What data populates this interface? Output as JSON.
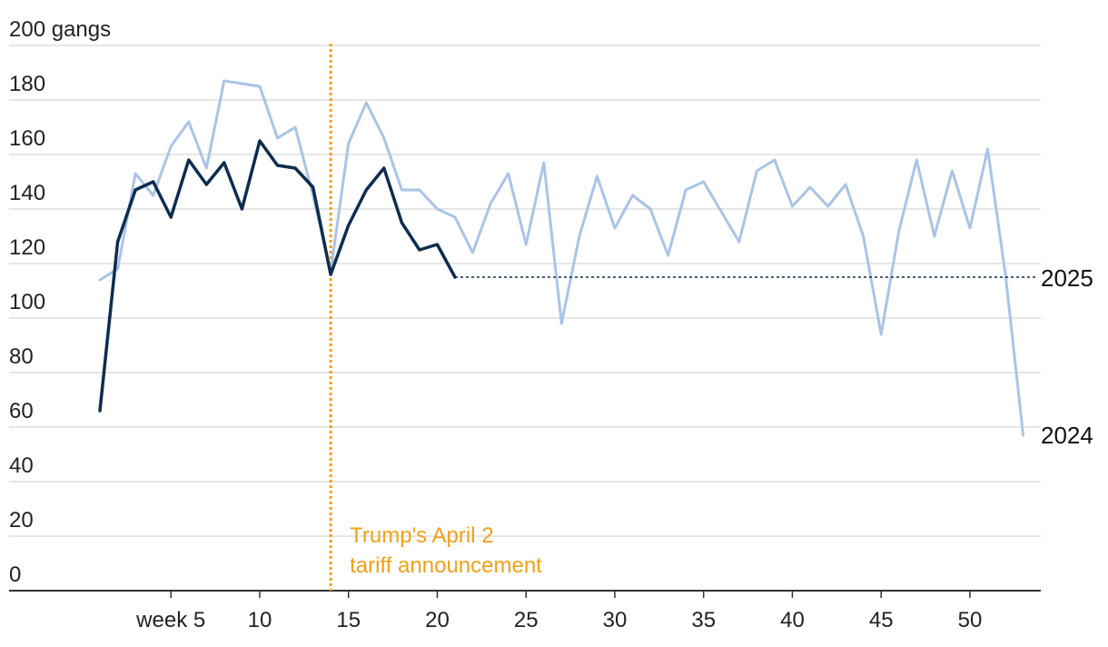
{
  "chart_data": {
    "type": "line",
    "ylabel": "gangs",
    "ylim": [
      0,
      200
    ],
    "xlim": [
      1,
      53
    ],
    "grid": true,
    "y_ticks": [
      0,
      20,
      40,
      60,
      80,
      100,
      120,
      140,
      160,
      180,
      200
    ],
    "y_tick_labels": [
      "0",
      "20",
      "40",
      "60",
      "80",
      "100",
      "120",
      "140",
      "160",
      "180",
      "200 gangs"
    ],
    "x_ticks": [
      5,
      10,
      15,
      20,
      25,
      30,
      35,
      40,
      45,
      50
    ],
    "x_tick_labels": [
      "week 5",
      "10",
      "15",
      "20",
      "25",
      "30",
      "35",
      "40",
      "45",
      "50"
    ],
    "series": [
      {
        "name": "2024",
        "color": "#a9c4e6",
        "x": [
          1,
          2,
          3,
          4,
          5,
          6,
          7,
          8,
          9,
          10,
          11,
          12,
          13,
          14,
          15,
          16,
          17,
          18,
          19,
          20,
          21,
          22,
          23,
          24,
          25,
          26,
          27,
          28,
          29,
          30,
          31,
          32,
          33,
          34,
          35,
          36,
          37,
          38,
          39,
          40,
          41,
          42,
          43,
          44,
          45,
          46,
          47,
          48,
          49,
          50,
          51,
          52,
          53
        ],
        "values": [
          114,
          118,
          153,
          145,
          163,
          172,
          155,
          187,
          186,
          185,
          166,
          170,
          145,
          117,
          164,
          179,
          166,
          147,
          147,
          140,
          137,
          124,
          142,
          153,
          127,
          157,
          98,
          130,
          152,
          133,
          145,
          140,
          123,
          147,
          150,
          139,
          128,
          154,
          158,
          141,
          148,
          141,
          149,
          130,
          94,
          132,
          158,
          130,
          154,
          133,
          162,
          116,
          57
        ]
      },
      {
        "name": "2025",
        "color": "#0d2d4f",
        "x": [
          1,
          2,
          3,
          4,
          5,
          6,
          7,
          8,
          9,
          10,
          11,
          12,
          13,
          14,
          15,
          16,
          17,
          18,
          19,
          20,
          21
        ],
        "values": [
          66,
          128,
          147,
          150,
          137,
          158,
          149,
          157,
          140,
          165,
          156,
          155,
          148,
          116,
          134,
          147,
          155,
          135,
          125,
          127,
          115
        ],
        "projection": {
          "from_x": 21,
          "to_x": 53,
          "value": 115
        }
      }
    ],
    "annotations": [
      {
        "x": 14,
        "text_lines": [
          "Trump's April 2",
          "tariff announcement"
        ],
        "color": "#f0a11a"
      }
    ]
  }
}
